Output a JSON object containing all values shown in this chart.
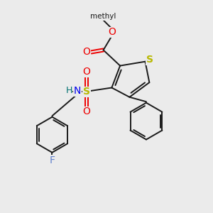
{
  "background_color": "#ebebeb",
  "bond_color": "#1a1a1a",
  "S_color": "#b8b800",
  "O_color": "#ee0000",
  "N_color": "#0000ee",
  "H_color": "#007070",
  "F_color": "#6080cc",
  "figsize": [
    3.0,
    3.0
  ],
  "dpi": 100,
  "xlim": [
    0,
    10
  ],
  "ylim": [
    0,
    10
  ]
}
